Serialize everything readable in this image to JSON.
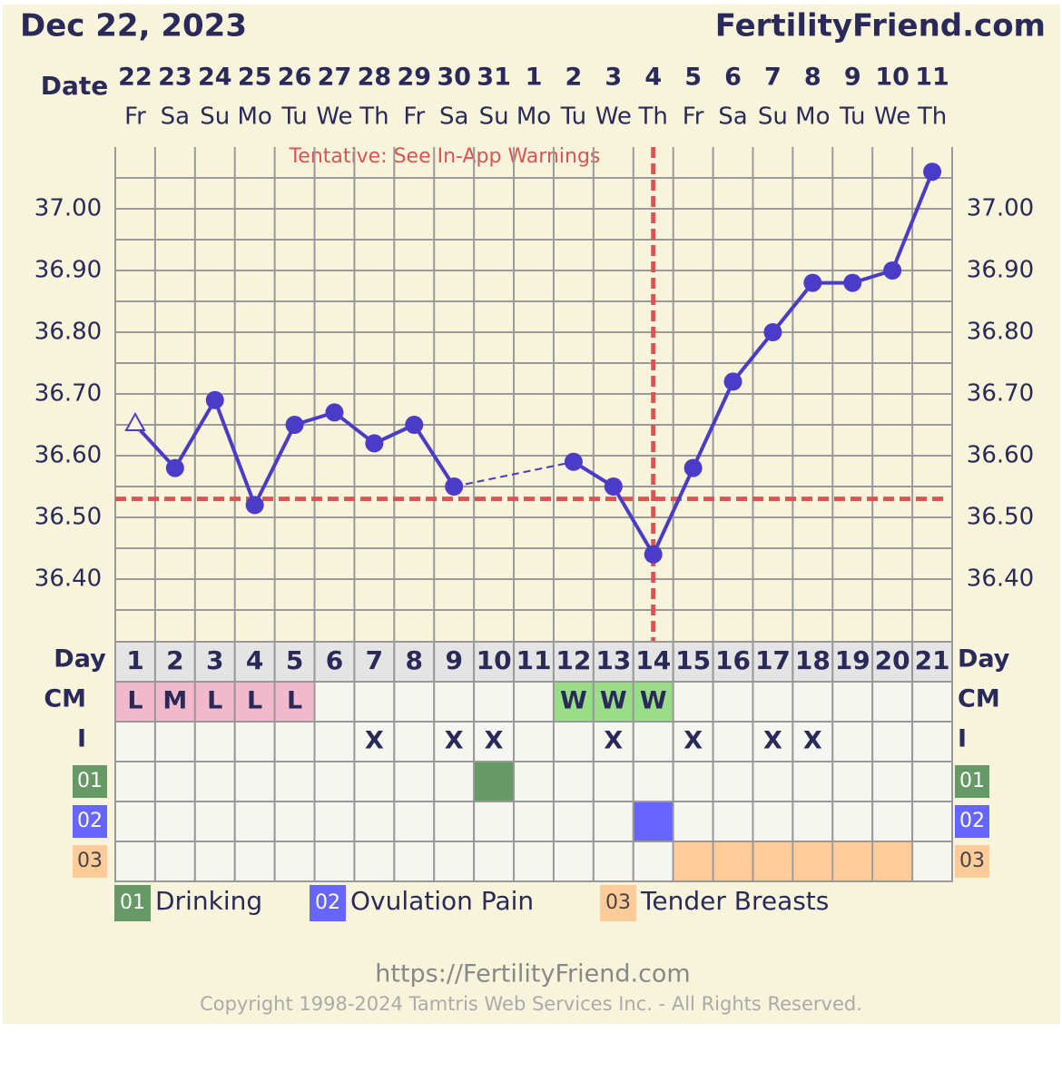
{
  "header": {
    "date": "Dec 22, 2023",
    "site": "FertilityFriend.com"
  },
  "chart_data": {
    "type": "line",
    "date_label": "Date",
    "dates": [
      "22",
      "23",
      "24",
      "25",
      "26",
      "27",
      "28",
      "29",
      "30",
      "31",
      "1",
      "2",
      "3",
      "4",
      "5",
      "6",
      "7",
      "8",
      "9",
      "10",
      "11"
    ],
    "weekdays": [
      "Fr",
      "Sa",
      "Su",
      "Mo",
      "Tu",
      "We",
      "Th",
      "Fr",
      "Sa",
      "Su",
      "Mo",
      "Tu",
      "We",
      "Th",
      "Fr",
      "Sa",
      "Su",
      "Mo",
      "Tu",
      "We",
      "Th"
    ],
    "annotation": "Tentative: See In-App Warnings",
    "values": [
      36.65,
      36.58,
      36.69,
      36.52,
      36.65,
      36.67,
      36.62,
      36.65,
      36.55,
      null,
      null,
      36.59,
      36.55,
      36.44,
      36.58,
      36.72,
      36.8,
      36.88,
      36.88,
      36.9,
      37.06
    ],
    "markers": [
      "triangle-open",
      "circle",
      "circle",
      "circle",
      "circle",
      "circle",
      "circle",
      "circle",
      "circle",
      null,
      null,
      "circle",
      "circle",
      "circle",
      "circle",
      "circle",
      "circle",
      "circle",
      "circle",
      "circle",
      "circle"
    ],
    "color": "#4a3cc6",
    "ylim": [
      36.3,
      37.1
    ],
    "yticks": [
      {
        "value": 36.4,
        "label": "36.40"
      },
      {
        "value": 36.5,
        "label": "36.50"
      },
      {
        "value": 36.6,
        "label": "36.60"
      },
      {
        "value": 36.7,
        "label": "36.70"
      },
      {
        "value": 36.8,
        "label": "36.80"
      },
      {
        "value": 36.9,
        "label": "36.90"
      },
      {
        "value": 37.0,
        "label": "37.00"
      }
    ],
    "minor_yticks": [
      36.35,
      36.45,
      36.55,
      36.65,
      36.75,
      36.85,
      36.95,
      37.05
    ],
    "grid": true,
    "coverline": 36.53,
    "ovulation_day": 14,
    "marker_line_color": "#d95555"
  },
  "rows": {
    "day": {
      "label": "Day",
      "values": [
        1,
        2,
        3,
        4,
        5,
        6,
        7,
        8,
        9,
        10,
        11,
        12,
        13,
        14,
        15,
        16,
        17,
        18,
        19,
        20,
        21
      ]
    },
    "cm": {
      "label": "CM",
      "values": [
        "L",
        "M",
        "L",
        "L",
        "L",
        null,
        null,
        null,
        null,
        null,
        null,
        "W",
        "W",
        "W",
        null,
        null,
        null,
        null,
        null,
        null,
        null
      ],
      "colors": {
        "L": "#f2b8cc",
        "M": "#f2b8cc",
        "W": "#99dd88"
      }
    },
    "i": {
      "label": "I",
      "values": [
        null,
        null,
        null,
        null,
        null,
        null,
        "X",
        null,
        "X",
        "X",
        null,
        null,
        "X",
        null,
        "X",
        null,
        "X",
        "X",
        null,
        null,
        null
      ]
    }
  },
  "symptoms": [
    {
      "code": "01",
      "name": "Drinking",
      "color": "#669966",
      "text_color": "#ffffff",
      "days": [
        10
      ]
    },
    {
      "code": "02",
      "name": "Ovulation Pain",
      "color": "#6666ff",
      "text_color": "#ffffff",
      "days": [
        14
      ]
    },
    {
      "code": "03",
      "name": "Tender Breasts",
      "color": "#ffcc99",
      "text_color": "#444444",
      "days": [
        15,
        16,
        17,
        18,
        19,
        20
      ]
    }
  ],
  "footer": {
    "url": "https://FertilityFriend.com",
    "copyright": "Copyright 1998-2024 Tamtris Web Services Inc. - All Rights Reserved."
  }
}
